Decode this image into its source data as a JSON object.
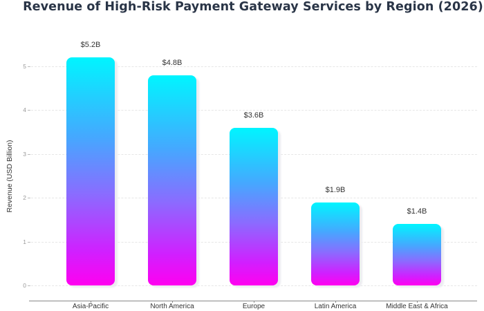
{
  "chart_data": {
    "type": "bar",
    "title": "Revenue of High-Risk Payment Gateway Services by Region (2026)",
    "xlabel": "",
    "ylabel": "Revenue (USD Billion)",
    "categories": [
      "Asia-Pacific",
      "North America",
      "Europe",
      "Latin America",
      "Middle East & Africa"
    ],
    "values": [
      5.2,
      4.8,
      3.6,
      1.9,
      1.4
    ],
    "data_labels": [
      "$5.2B",
      "$4.8B",
      "$3.6B",
      "$1.9B",
      "$1.4B"
    ],
    "ylim": [
      0,
      5.5
    ],
    "yticks": [
      "0",
      "1",
      "2",
      "3",
      "4",
      "5"
    ],
    "grid": true,
    "legend": null,
    "bar_gradient": [
      "#00f5ff",
      "#ff00f0"
    ]
  }
}
